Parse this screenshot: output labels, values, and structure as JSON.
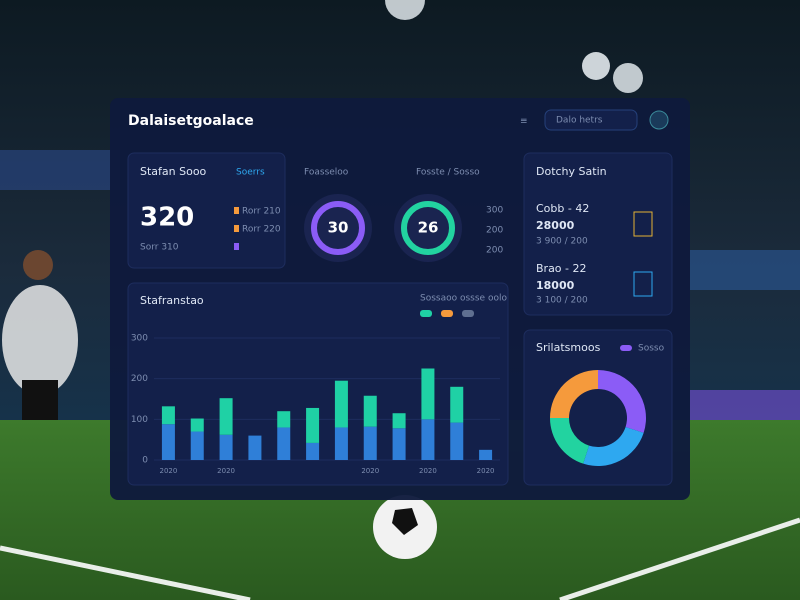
{
  "header": {
    "title": "Dalaisetgoalace",
    "search": "Dalo hetrs"
  },
  "score_card": {
    "title": "Stafan Sooo",
    "tag": "Soerrs",
    "value": 320,
    "items": [
      "Sorr 310",
      "Rorr 210",
      "Rorr 220"
    ]
  },
  "rings": {
    "title": "Foasseloo",
    "subtitle": "Fosste / Sosso",
    "items": [
      {
        "value": 30,
        "color": "#8b5cf6"
      },
      {
        "value": 26,
        "color": "#22d3a0"
      }
    ],
    "side": [
      "300",
      "200",
      "200"
    ]
  },
  "teams": {
    "title": "Dotchy Satin",
    "items": [
      {
        "name": "Cobb - 42",
        "value": "28000",
        "sub": "3 900 / 200"
      },
      {
        "name": "Brao - 22",
        "value": "18000",
        "sub": "3 100 / 200"
      }
    ]
  },
  "chart_data": [
    {
      "type": "bar",
      "stacked": true,
      "title": "Stafranstao",
      "legend": "Sossaoo ossse oolo",
      "categories": [
        "2020",
        null,
        "2020",
        null,
        null,
        null,
        null,
        "2020",
        null,
        "2020",
        null,
        "2020"
      ],
      "series": [
        {
          "color": "#2f7fd8",
          "values": [
            88,
            70,
            62,
            60,
            80,
            42,
            80,
            82,
            78,
            100,
            92,
            25
          ]
        },
        {
          "color": "#1fd1a5",
          "values": [
            44,
            32,
            90,
            0,
            40,
            86,
            115,
            76,
            37,
            125,
            88,
            0
          ]
        }
      ],
      "ylim": [
        0,
        300
      ],
      "yticks": [
        0,
        100,
        200,
        300
      ],
      "grid": true
    },
    {
      "type": "pie",
      "title": "Srilatsmoos",
      "legend": "Sosso",
      "values": [
        30,
        25,
        20,
        25
      ],
      "colors": [
        "#8b5cf6",
        "#2ea8f0",
        "#22d3a0",
        "#f59a3c"
      ]
    }
  ]
}
